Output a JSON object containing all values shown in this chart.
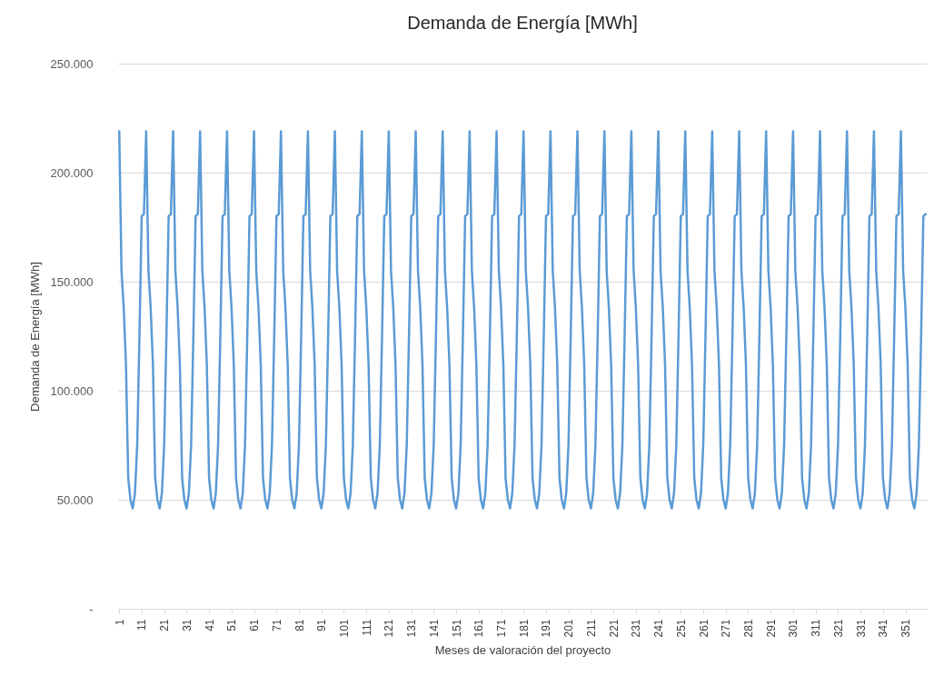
{
  "chart_data": {
    "type": "line",
    "title": "Demanda de Energía [MWh]",
    "xlabel": "Meses de valoración del proyecto",
    "ylabel": "Demanda de Energía [MWh]",
    "x": [
      1,
      2,
      3,
      4,
      5,
      6,
      7,
      8,
      9,
      10,
      11,
      12,
      13,
      14,
      15,
      16,
      17,
      18,
      19,
      20,
      21,
      22,
      23,
      24,
      25,
      26,
      27,
      28,
      29,
      30,
      31,
      32,
      33,
      34,
      35,
      36,
      37,
      38,
      39,
      40,
      41,
      42,
      43,
      44,
      45,
      46,
      47,
      48,
      49,
      50,
      51,
      52,
      53,
      54,
      55,
      56,
      57,
      58,
      59,
      60,
      61,
      62,
      63,
      64,
      65,
      66,
      67,
      68,
      69,
      70,
      71,
      72,
      73,
      74,
      75,
      76,
      77,
      78,
      79,
      80,
      81,
      82,
      83,
      84,
      85,
      86,
      87,
      88,
      89,
      90,
      91,
      92,
      93,
      94,
      95,
      96,
      97,
      98,
      99,
      100,
      101,
      102,
      103,
      104,
      105,
      106,
      107,
      108,
      109,
      110,
      111,
      112,
      113,
      114,
      115,
      116,
      117,
      118,
      119,
      120,
      121,
      122,
      123,
      124,
      125,
      126,
      127,
      128,
      129,
      130,
      131,
      132,
      133,
      134,
      135,
      136,
      137,
      138,
      139,
      140,
      141,
      142,
      143,
      144,
      145,
      146,
      147,
      148,
      149,
      150,
      151,
      152,
      153,
      154,
      155,
      156,
      157,
      158,
      159,
      160,
      161,
      162,
      163,
      164,
      165,
      166,
      167,
      168,
      169,
      170,
      171,
      172,
      173,
      174,
      175,
      176,
      177,
      178,
      179,
      180,
      181,
      182,
      183,
      184,
      185,
      186,
      187,
      188,
      189,
      190,
      191,
      192,
      193,
      194,
      195,
      196,
      197,
      198,
      199,
      200,
      201,
      202,
      203,
      204,
      205,
      206,
      207,
      208,
      209,
      210,
      211,
      212,
      213,
      214,
      215,
      216,
      217,
      218,
      219,
      220,
      221,
      222,
      223,
      224,
      225,
      226,
      227,
      228,
      229,
      230,
      231,
      232,
      233,
      234,
      235,
      236,
      237,
      238,
      239,
      240,
      241,
      242,
      243,
      244,
      245,
      246,
      247,
      248,
      249,
      250,
      251,
      252,
      253,
      254,
      255,
      256,
      257,
      258,
      259,
      260,
      261,
      262,
      263,
      264,
      265,
      266,
      267,
      268,
      269,
      270,
      271,
      272,
      273,
      274,
      275,
      276,
      277,
      278,
      279,
      280,
      281,
      282,
      283,
      284,
      285,
      286,
      287,
      288,
      289,
      290,
      291,
      292,
      293,
      294,
      295,
      296,
      297,
      298,
      299,
      300,
      301,
      302,
      303,
      304,
      305,
      306,
      307,
      308,
      309,
      310,
      311,
      312,
      313,
      314,
      315,
      316,
      317,
      318,
      319,
      320,
      321,
      322,
      323,
      324,
      325,
      326,
      327,
      328,
      329,
      330,
      331,
      332,
      333,
      334,
      335,
      336,
      337,
      338,
      339,
      340,
      341,
      342,
      343,
      344,
      345,
      346,
      347,
      348,
      349,
      350,
      351,
      352,
      353,
      354,
      355,
      356,
      357,
      358,
      359,
      360
    ],
    "series": [
      {
        "color": "#5b9bd5",
        "values": [
          219000,
          155000,
          138000,
          112000,
          60000,
          50000,
          46000,
          53000,
          75000,
          125000,
          180000,
          181000,
          219000,
          155000,
          138000,
          112000,
          60000,
          50000,
          46000,
          53000,
          75000,
          125000,
          180000,
          181000,
          219000,
          155000,
          138000,
          112000,
          60000,
          50000,
          46000,
          53000,
          75000,
          125000,
          180000,
          181000,
          219000,
          155000,
          138000,
          112000,
          60000,
          50000,
          46000,
          53000,
          75000,
          125000,
          180000,
          181000,
          219000,
          155000,
          138000,
          112000,
          60000,
          50000,
          46000,
          53000,
          75000,
          125000,
          180000,
          181000,
          219000,
          155000,
          138000,
          112000,
          60000,
          50000,
          46000,
          53000,
          75000,
          125000,
          180000,
          181000,
          219000,
          155000,
          138000,
          112000,
          60000,
          50000,
          46000,
          53000,
          75000,
          125000,
          180000,
          181000,
          219000,
          155000,
          138000,
          112000,
          60000,
          50000,
          46000,
          53000,
          75000,
          125000,
          180000,
          181000,
          219000,
          155000,
          138000,
          112000,
          60000,
          50000,
          46000,
          53000,
          75000,
          125000,
          180000,
          181000,
          219000,
          155000,
          138000,
          112000,
          60000,
          50000,
          46000,
          53000,
          75000,
          125000,
          180000,
          181000,
          219000,
          155000,
          138000,
          112000,
          60000,
          50000,
          46000,
          53000,
          75000,
          125000,
          180000,
          181000,
          219000,
          155000,
          138000,
          112000,
          60000,
          50000,
          46000,
          53000,
          75000,
          125000,
          180000,
          181000,
          219000,
          155000,
          138000,
          112000,
          60000,
          50000,
          46000,
          53000,
          75000,
          125000,
          180000,
          181000,
          219000,
          155000,
          138000,
          112000,
          60000,
          50000,
          46000,
          53000,
          75000,
          125000,
          180000,
          181000,
          219000,
          155000,
          138000,
          112000,
          60000,
          50000,
          46000,
          53000,
          75000,
          125000,
          180000,
          181000,
          219000,
          155000,
          138000,
          112000,
          60000,
          50000,
          46000,
          53000,
          75000,
          125000,
          180000,
          181000,
          219000,
          155000,
          138000,
          112000,
          60000,
          50000,
          46000,
          53000,
          75000,
          125000,
          180000,
          181000,
          219000,
          155000,
          138000,
          112000,
          60000,
          50000,
          46000,
          53000,
          75000,
          125000,
          180000,
          181000,
          219000,
          155000,
          138000,
          112000,
          60000,
          50000,
          46000,
          53000,
          75000,
          125000,
          180000,
          181000,
          219000,
          155000,
          138000,
          112000,
          60000,
          50000,
          46000,
          53000,
          75000,
          125000,
          180000,
          181000,
          219000,
          155000,
          138000,
          112000,
          60000,
          50000,
          46000,
          53000,
          75000,
          125000,
          180000,
          181000,
          219000,
          155000,
          138000,
          112000,
          60000,
          50000,
          46000,
          53000,
          75000,
          125000,
          180000,
          181000,
          219000,
          155000,
          138000,
          112000,
          60000,
          50000,
          46000,
          53000,
          75000,
          125000,
          180000,
          181000,
          219000,
          155000,
          138000,
          112000,
          60000,
          50000,
          46000,
          53000,
          75000,
          125000,
          180000,
          181000,
          219000,
          155000,
          138000,
          112000,
          60000,
          50000,
          46000,
          53000,
          75000,
          125000,
          180000,
          181000,
          219000,
          155000,
          138000,
          112000,
          60000,
          50000,
          46000,
          53000,
          75000,
          125000,
          180000,
          181000,
          219000,
          155000,
          138000,
          112000,
          60000,
          50000,
          46000,
          53000,
          75000,
          125000,
          180000,
          181000,
          219000,
          155000,
          138000,
          112000,
          60000,
          50000,
          46000,
          53000,
          75000,
          125000,
          180000,
          181000,
          219000,
          155000,
          138000,
          112000,
          60000,
          50000,
          46000,
          53000,
          75000,
          125000,
          180000,
          181000,
          219000,
          155000,
          138000,
          112000,
          60000,
          50000,
          46000,
          53000,
          75000,
          125000,
          180000,
          181000
        ]
      }
    ],
    "xlim": [
      0.5,
      360.5
    ],
    "xticks": [
      1,
      11,
      21,
      31,
      41,
      51,
      61,
      71,
      81,
      91,
      101,
      111,
      121,
      131,
      141,
      151,
      161,
      171,
      181,
      191,
      201,
      211,
      221,
      231,
      241,
      251,
      261,
      271,
      281,
      291,
      301,
      311,
      321,
      331,
      341,
      351
    ],
    "ylim": [
      0,
      250000
    ],
    "yticks": [
      {
        "value": 0,
        "label": "-"
      },
      {
        "value": 50000,
        "label": "50.000"
      },
      {
        "value": 100000,
        "label": "100.000"
      },
      {
        "value": 150000,
        "label": "150.000"
      },
      {
        "value": 200000,
        "label": "200.000"
      },
      {
        "value": 250000,
        "label": "250.000"
      }
    ],
    "grid": "y",
    "marker": "none",
    "line_style": "solid"
  }
}
